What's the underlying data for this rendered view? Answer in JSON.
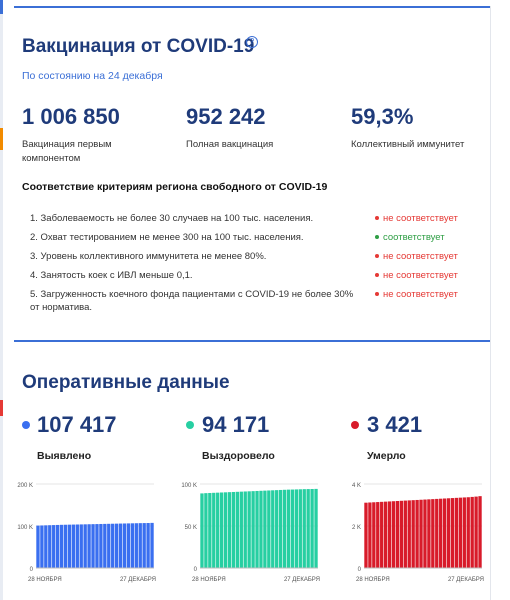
{
  "vaccination": {
    "title": "Вакцинация от COVID-19",
    "help_icon": "question-circle-icon",
    "as_of": "По состоянию на 24 декабря",
    "stats": [
      {
        "value": "1 006 850",
        "label": "Вакцинация первым компонентом"
      },
      {
        "value": "952 242",
        "label": "Полная вакцинация"
      },
      {
        "value": "59,3%",
        "label": "Коллективный иммунитет"
      }
    ]
  },
  "criteria": {
    "title": "Соответствие критериям региона свободного от COVID-19",
    "items": [
      {
        "text": "1. Заболеваемость не более 30 случаев на 100 тыс. населения.",
        "status": "не соответствует",
        "color": "#e53935"
      },
      {
        "text": "2. Охват тестированием не менее 300 на 100 тыс. населения.",
        "status": "соответствует",
        "color": "#2e9e44"
      },
      {
        "text": "3. Уровень коллективного иммунитета не менее 80%.",
        "status": "не соответствует",
        "color": "#e53935"
      },
      {
        "text": "4. Занятость коек с ИВЛ меньше 0,1.",
        "status": "не соответствует",
        "color": "#e53935"
      },
      {
        "text": "5. Загруженность коечного фонда пациентами с COVID-19 не более 30% от норматива.",
        "status": "не соответствует",
        "color": "#e53935"
      }
    ]
  },
  "operational": {
    "title": "Оперативные данные",
    "metrics": [
      {
        "value": "107 417",
        "label": "Выявлено",
        "color": "#3a6ff0"
      },
      {
        "value": "94 171",
        "label": "Выздоровело",
        "color": "#27cfa2"
      },
      {
        "value": "3 421",
        "label": "Умерло",
        "color": "#d81b2a"
      }
    ]
  },
  "chart_data": [
    {
      "type": "bar",
      "series": [
        {
          "values": [
            101000,
            101300,
            101600,
            101900,
            102200,
            102500,
            102800,
            103000,
            103200,
            103400,
            103600,
            103800,
            104000,
            104200,
            104400,
            104600,
            104800,
            105000,
            105200,
            105400,
            105600,
            105800,
            106000,
            106200,
            106400,
            106600,
            106800,
            106950,
            107100,
            107417
          ]
        }
      ],
      "x_start_label": "28 НОЯБРЯ",
      "x_end_label": "27 ДЕКАБРЯ",
      "yticks": [
        "200 K",
        "100 K",
        "0"
      ],
      "ylim": [
        0,
        200000
      ],
      "color": "#3a6ff0"
    },
    {
      "type": "bar",
      "series": [
        {
          "values": [
            88800,
            89100,
            89300,
            89500,
            89700,
            89900,
            90100,
            90300,
            90500,
            90700,
            90900,
            91100,
            91300,
            91500,
            91700,
            91900,
            92100,
            92300,
            92500,
            92700,
            92900,
            93100,
            93300,
            93400,
            93550,
            93700,
            93850,
            93950,
            94050,
            94171
          ]
        }
      ],
      "x_start_label": "28 НОЯБРЯ",
      "x_end_label": "27 ДЕКАБРЯ",
      "yticks": [
        "100 K",
        "50 K",
        "0"
      ],
      "ylim": [
        0,
        100000
      ],
      "color": "#27cfa2"
    },
    {
      "type": "bar",
      "series": [
        {
          "values": [
            3110,
            3120,
            3130,
            3140,
            3150,
            3160,
            3170,
            3180,
            3190,
            3200,
            3210,
            3220,
            3230,
            3240,
            3250,
            3260,
            3270,
            3280,
            3290,
            3300,
            3310,
            3320,
            3330,
            3340,
            3350,
            3360,
            3370,
            3385,
            3400,
            3421
          ]
        }
      ],
      "x_start_label": "28 НОЯБРЯ",
      "x_end_label": "27 ДЕКАБРЯ",
      "yticks": [
        "4 K",
        "2 K",
        "0"
      ],
      "ylim": [
        0,
        4000
      ],
      "color": "#d81b2a"
    }
  ]
}
